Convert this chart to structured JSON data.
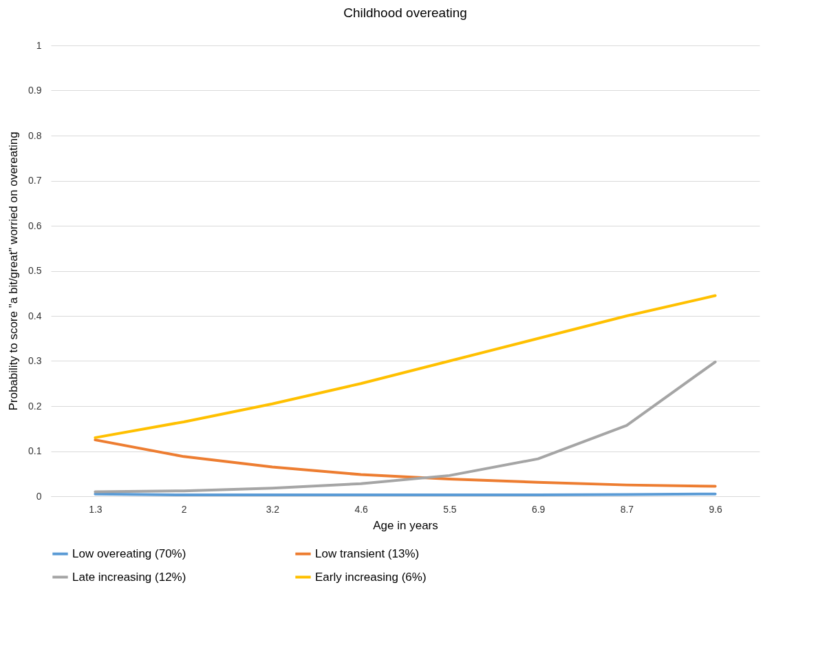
{
  "chart_data": {
    "type": "line",
    "title": "Childhood overeating",
    "xlabel": "Age in years",
    "ylabel": "Probability to score \"a bit/great\" worried on overeating",
    "categories": [
      "1.3",
      "2",
      "3.2",
      "4.6",
      "5.5",
      "6.9",
      "8.7",
      "9.6"
    ],
    "series": [
      {
        "name": "Low overeating (70%)",
        "color": "#5b9bd5",
        "values": [
          0.005,
          0.003,
          0.003,
          0.003,
          0.003,
          0.003,
          0.004,
          0.005
        ]
      },
      {
        "name": "Low transient (13%)",
        "color": "#ed7d31",
        "values": [
          0.125,
          0.088,
          0.065,
          0.048,
          0.038,
          0.031,
          0.025,
          0.022
        ]
      },
      {
        "name": "Late increasing (12%)",
        "color": "#a5a5a5",
        "values": [
          0.01,
          0.012,
          0.018,
          0.028,
          0.046,
          0.083,
          0.157,
          0.298
        ]
      },
      {
        "name": "Early increasing (6%)",
        "color": "#ffc000",
        "values": [
          0.13,
          0.165,
          0.205,
          0.25,
          0.3,
          0.35,
          0.4,
          0.445
        ]
      }
    ],
    "ylim": [
      0,
      1
    ],
    "yticks": [
      0,
      0.1,
      0.2,
      0.3,
      0.4,
      0.5,
      0.6,
      0.7,
      0.8,
      0.9,
      1
    ],
    "grid": "y",
    "legend": "bottom"
  }
}
